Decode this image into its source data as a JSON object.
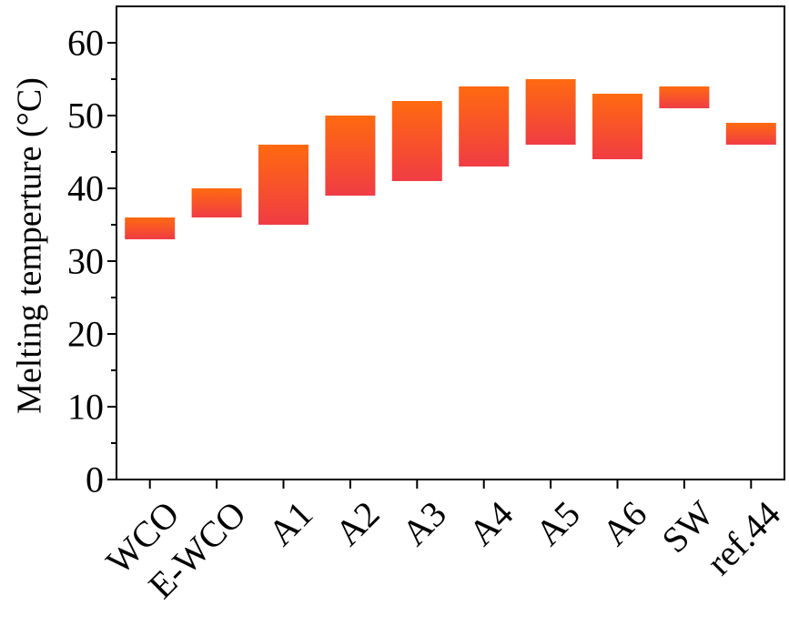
{
  "chart_data": {
    "type": "range_bar",
    "y_label": "Melting temperture (°C)",
    "categories": [
      "WCO",
      "E-WCO",
      "A1",
      "A2",
      "A3",
      "A4",
      "A5",
      "A6",
      "SW",
      "ref.44"
    ],
    "low": [
      33,
      36,
      35,
      39,
      41,
      43,
      46,
      44,
      51,
      46
    ],
    "high": [
      36,
      40,
      46,
      50,
      52,
      54,
      55,
      53,
      54,
      49
    ],
    "color_top": "#ff6a10",
    "color_bottom": "#f03c44",
    "ylim": [
      0,
      65
    ],
    "yticks": [
      0,
      10,
      20,
      30,
      40,
      50,
      60
    ]
  }
}
